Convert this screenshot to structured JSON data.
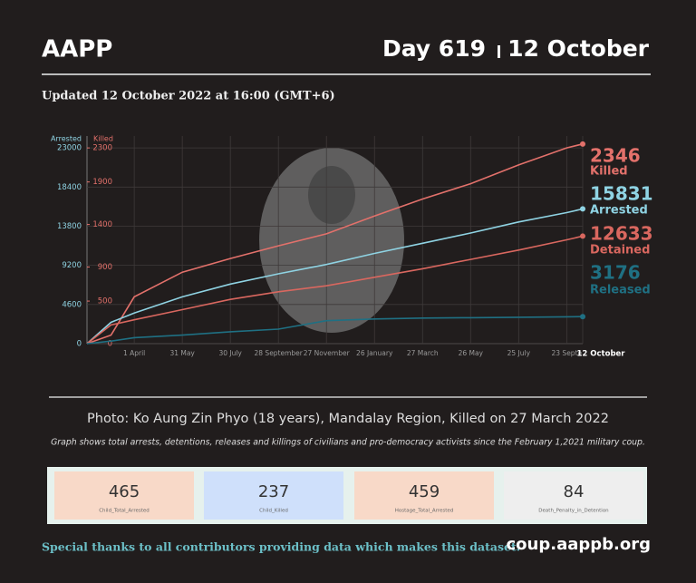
{
  "header": {
    "title": "AAPP",
    "day": "Day 619",
    "date": "12 October",
    "updated": "Updated 12 October 2022 at 16:00 (GMT+6)"
  },
  "chart_data": {
    "type": "line",
    "ylabel": "Arrested",
    "y2label": "Killed",
    "x": [
      0,
      30,
      59,
      119,
      179,
      239,
      299,
      359,
      419,
      479,
      539,
      599,
      619
    ],
    "xlim": [
      0,
      619
    ],
    "xticks": [
      {
        "value": 59,
        "label": "1 April"
      },
      {
        "value": 119,
        "label": "31 May"
      },
      {
        "value": 179,
        "label": "30 July"
      },
      {
        "value": 239,
        "label": "28 September"
      },
      {
        "value": 299,
        "label": "27 November"
      },
      {
        "value": 359,
        "label": "26 January"
      },
      {
        "value": 419,
        "label": "27 March"
      },
      {
        "value": 479,
        "label": "26 May"
      },
      {
        "value": 539,
        "label": "25 July"
      },
      {
        "value": 599,
        "label": "23 Septe"
      },
      {
        "value": 619,
        "label": "12 October"
      }
    ],
    "ylim": [
      0,
      24400
    ],
    "yticks": [
      0,
      4600,
      9200,
      13800,
      18400,
      23000
    ],
    "y2lim": [
      0,
      2440
    ],
    "y2ticks": [
      0,
      500,
      900,
      1400,
      1900,
      2300
    ],
    "grid": true,
    "series": [
      {
        "name": "Killed",
        "color": "#e3716b",
        "axis": "y2",
        "values": [
          0,
          100,
          550,
          840,
          1000,
          1150,
          1290,
          1500,
          1700,
          1880,
          2100,
          2300,
          2346
        ]
      },
      {
        "name": "Arrested",
        "color": "#8fd3e3",
        "values": [
          0,
          2500,
          3600,
          5500,
          7000,
          8200,
          9300,
          10600,
          11800,
          13000,
          14300,
          15400,
          15831
        ]
      },
      {
        "name": "Detained",
        "color": "#d9675f",
        "values": [
          0,
          2200,
          2800,
          4000,
          5200,
          6100,
          6800,
          7800,
          8800,
          9900,
          11000,
          12200,
          12633
        ]
      },
      {
        "name": "Released",
        "color": "#1f7083",
        "values": [
          0,
          300,
          700,
          1000,
          1400,
          1700,
          2700,
          2900,
          3000,
          3050,
          3100,
          3150,
          3176
        ]
      }
    ]
  },
  "caption": "Photo: Ko Aung Zin Phyo (18 years), Mandalay Region, Killed  on 27 March 2022",
  "note": "Graph shows total arrests, detentions, releases and killings of civilians and pro-democracy activists since the February 1,2021 military coup.",
  "stats": [
    {
      "value": 465,
      "label": "Child_Total_Arrested"
    },
    {
      "value": 237,
      "label": "Child_Killed"
    },
    {
      "value": 459,
      "label": "Hostage_Total_Arrested"
    },
    {
      "value": 84,
      "label": "Death_Penalty_in_Detention"
    }
  ],
  "footer": {
    "thanks": "Special thanks to all contributors providing data which makes this dataset.",
    "url": "coup.aappb.org"
  }
}
